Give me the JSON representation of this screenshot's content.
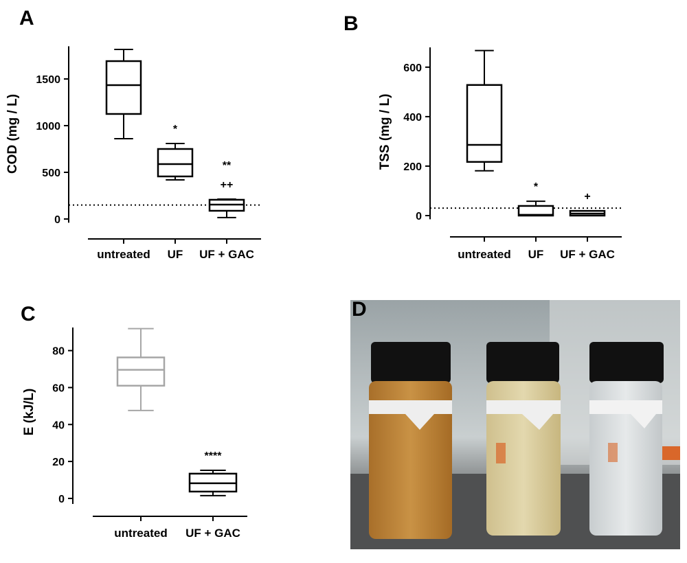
{
  "chart_data": [
    {
      "type": "box",
      "panel": "A",
      "ylabel": "COD (mg / L)",
      "categories": [
        "untreated",
        "UF",
        "UF + GAC"
      ],
      "min": [
        860,
        419,
        15
      ],
      "q1": [
        1125,
        456,
        88
      ],
      "median": [
        1434,
        588,
        154
      ],
      "q3": [
        1691,
        750,
        206
      ],
      "max": [
        1816,
        809,
        213
      ],
      "colors": [
        "#000000",
        "#000000",
        "#000000"
      ],
      "ylim": [
        -40,
        1850
      ],
      "yticks": [
        0,
        500,
        1000,
        1500
      ],
      "reference_line": 150,
      "annotations": [
        {
          "text": "*",
          "category": "UF"
        },
        {
          "text": "++",
          "category": "UF + GAC"
        },
        {
          "text": "**",
          "category": "UF + GAC"
        }
      ]
    },
    {
      "type": "box",
      "panel": "B",
      "ylabel": "TSS (mg / L)",
      "categories": [
        "untreated",
        "UF",
        "UF + GAC"
      ],
      "min": [
        181,
        0,
        0
      ],
      "q1": [
        217,
        0,
        0
      ],
      "median": [
        286,
        3,
        8
      ],
      "q3": [
        528,
        39,
        19
      ],
      "max": [
        667,
        58,
        19
      ],
      "colors": [
        "#000000",
        "#000000",
        "#000000"
      ],
      "ylim": [
        -15,
        680
      ],
      "yticks": [
        0,
        200,
        400,
        600
      ],
      "reference_line": 30,
      "annotations": [
        {
          "text": "*",
          "category": "UF"
        },
        {
          "text": "+",
          "category": "UF + GAC"
        }
      ]
    },
    {
      "type": "box",
      "panel": "C",
      "ylabel": "E (kJ/L)",
      "categories": [
        "untreated",
        "UF + GAC"
      ],
      "min": [
        47.6,
        1.5
      ],
      "q1": [
        61.0,
        3.7
      ],
      "median": [
        69.6,
        8.2
      ],
      "q3": [
        76.3,
        13.4
      ],
      "max": [
        91.9,
        15.2
      ],
      "colors": [
        "#a6a6a6",
        "#000000"
      ],
      "ylim": [
        -3,
        92.5
      ],
      "yticks": [
        0,
        20,
        40,
        60,
        80
      ],
      "annotations": [
        {
          "text": "****",
          "category": "UF + GAC"
        }
      ]
    }
  ],
  "photo": {
    "label": "D"
  }
}
